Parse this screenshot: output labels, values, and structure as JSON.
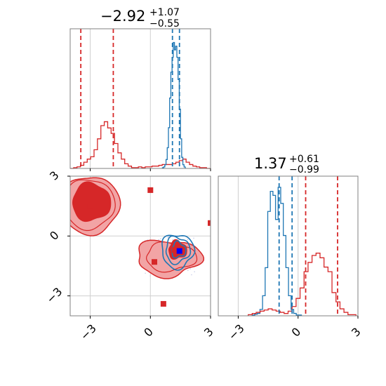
{
  "colors": {
    "red": "#d62728",
    "blue": "#1f77b4",
    "red_fill_light": "#f2a4a5",
    "red_fill_dark": "#d62728",
    "grid": "#cfcfcf",
    "frame": "#808080",
    "blue_marker": "#0000ff"
  },
  "chart_data": {
    "type": "corner",
    "grid": true,
    "axis_range": [
      -4.0,
      3.0
    ],
    "ticks": [
      -3,
      0,
      3
    ],
    "tick_labels": [
      "−3",
      "0",
      "3"
    ],
    "param1_title": {
      "value": "−2.92",
      "plus": "+1.07",
      "minus": "−0.55"
    },
    "param2_title": {
      "value": "1.37",
      "plus": "+0.61",
      "minus": "−0.99"
    },
    "hist1": {
      "red_bin_edges_start": -4.0,
      "red_bin_width": 0.17,
      "red_counts": [
        0,
        1,
        2,
        4,
        8,
        12,
        15,
        24,
        38,
        55,
        60,
        52,
        45,
        32,
        20,
        12,
        6,
        3,
        1,
        1,
        2,
        1,
        2,
        2,
        3,
        3,
        4,
        5,
        5,
        5,
        6,
        8,
        10,
        12,
        8,
        5,
        3,
        2,
        1,
        1,
        0,
        0
      ],
      "blue_bin_edges_start": 0.6,
      "blue_bin_width": 0.06,
      "blue_counts": [
        1,
        2,
        5,
        12,
        28,
        55,
        95,
        130,
        150,
        170,
        160,
        165,
        150,
        120,
        80,
        40,
        15,
        5,
        2
      ],
      "red_quantile_lines": [
        -3.47,
        -1.85
      ],
      "blue_quantile_lines": [
        1.1,
        1.45
      ]
    },
    "hist2": {
      "blue_bin_edges_start": -2.3,
      "blue_bin_width": 0.13,
      "blue_counts": [
        1,
        2,
        3,
        8,
        25,
        60,
        130,
        155,
        150,
        120,
        160,
        140,
        100,
        60,
        25,
        8,
        3,
        1,
        1
      ],
      "red_bin_edges_start": -2.5,
      "red_bin_width": 0.2,
      "red_counts": [
        1,
        2,
        3,
        4,
        5,
        6,
        5,
        4,
        3,
        2,
        4,
        8,
        15,
        24,
        38,
        46,
        52,
        54,
        50,
        42,
        38,
        20,
        12,
        6,
        3,
        1,
        1
      ],
      "blue_quantile_lines": [
        -0.95,
        -0.3
      ],
      "red_quantile_lines": [
        0.38,
        1.98
      ]
    },
    "scatter2d": {
      "red_points": [
        {
          "x": -3.0,
          "y": 1.5
        },
        {
          "x": 0.0,
          "y": 2.3
        },
        {
          "x": 3.0,
          "y": 0.65
        },
        {
          "x": 0.2,
          "y": -1.3
        },
        {
          "x": 1.2,
          "y": -0.7
        },
        {
          "x": 0.65,
          "y": -3.4
        }
      ],
      "blue_points": [
        {
          "x": 1.45,
          "y": -0.75
        }
      ]
    }
  }
}
